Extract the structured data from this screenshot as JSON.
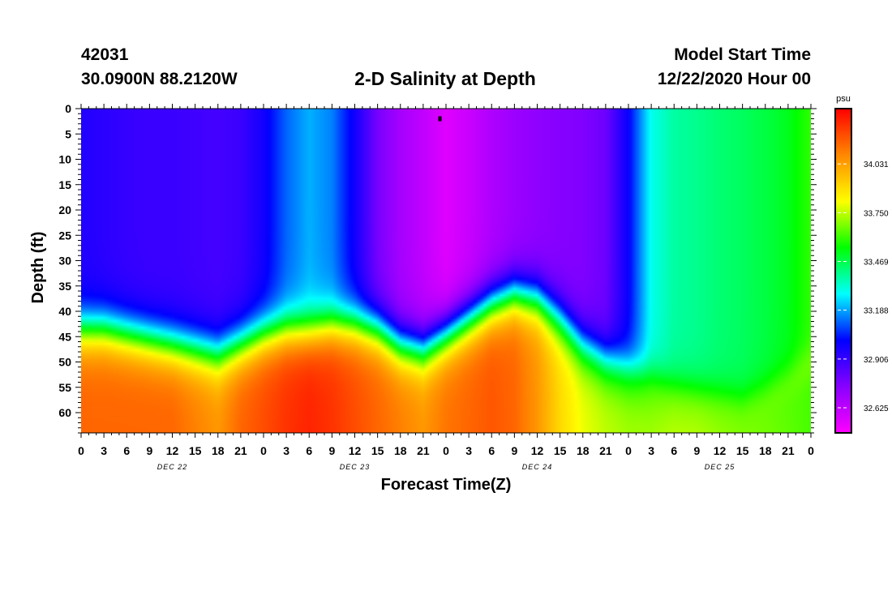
{
  "header": {
    "station_id": "42031",
    "location": "30.0900N 88.2120W",
    "title": "2-D Salinity at Depth",
    "model_label": "Model Start Time",
    "model_time": "12/22/2020 Hour 00"
  },
  "chart_data": {
    "type": "heatmap",
    "title": "2-D Salinity at Depth",
    "xlabel": "Forecast Time(Z)",
    "ylabel": "Depth (ft)",
    "x_hours_range": [
      0,
      96
    ],
    "x_tick_labels": [
      "0",
      "3",
      "6",
      "9",
      "12",
      "15",
      "18",
      "21",
      "0",
      "3",
      "6",
      "9",
      "12",
      "15",
      "18",
      "21",
      "0",
      "3",
      "6",
      "9",
      "12",
      "15",
      "18",
      "21",
      "0",
      "3",
      "6",
      "9",
      "12",
      "15",
      "18",
      "21",
      "0"
    ],
    "date_labels": [
      {
        "label": "DEC 22",
        "hour": 12
      },
      {
        "label": "DEC 23",
        "hour": 36
      },
      {
        "label": "DEC 24",
        "hour": 60
      },
      {
        "label": "DEC 25",
        "hour": 84
      }
    ],
    "y_range": [
      0,
      64
    ],
    "y_ticks": [
      0,
      5,
      10,
      15,
      20,
      25,
      30,
      35,
      40,
      45,
      50,
      55,
      60
    ],
    "colorbar": {
      "unit": "psu",
      "range": [
        32.48,
        34.35
      ],
      "ticks": [
        "34.031",
        "33.750",
        "33.469",
        "33.188",
        "32.906",
        "32.625"
      ],
      "colors": [
        "#ff00ff",
        "#8800ff",
        "#0000ff",
        "#00ffff",
        "#00ff00",
        "#ffff00",
        "#ff8800",
        "#ff0000"
      ]
    },
    "layers": {
      "hours": [
        0,
        3,
        6,
        9,
        12,
        15,
        18,
        21,
        24,
        27,
        30,
        33,
        36,
        39,
        42,
        45,
        48,
        51,
        54,
        57,
        60,
        63,
        66,
        69,
        72,
        75,
        78,
        81,
        84,
        87,
        90,
        93,
        96
      ],
      "surface_salinity": [
        32.95,
        32.93,
        32.91,
        32.9,
        32.9,
        32.89,
        32.88,
        32.9,
        32.98,
        33.12,
        33.2,
        33.15,
        32.98,
        32.78,
        32.68,
        32.62,
        32.55,
        32.6,
        32.66,
        32.7,
        32.73,
        32.75,
        32.76,
        32.8,
        33.0,
        33.3,
        33.38,
        33.4,
        33.43,
        33.45,
        33.48,
        33.52,
        33.6
      ],
      "interface_depth_ft": [
        44,
        44,
        45,
        46,
        47,
        48,
        49,
        47,
        45,
        44,
        44,
        43,
        43,
        44,
        47,
        48,
        45,
        42,
        39,
        37,
        38,
        42,
        47,
        50,
        52,
        54,
        56,
        57,
        58,
        59,
        57,
        54,
        50
      ],
      "deep_salinity": [
        34.15,
        34.15,
        34.15,
        34.15,
        34.15,
        34.1,
        34.05,
        34.15,
        34.2,
        34.25,
        34.28,
        34.25,
        34.2,
        34.15,
        34.1,
        34.05,
        34.12,
        34.15,
        34.18,
        34.15,
        34.05,
        33.9,
        33.8,
        33.75,
        33.72,
        33.72,
        33.75,
        33.75,
        33.72,
        33.7,
        33.68,
        33.65,
        33.62
      ]
    },
    "marker": {
      "hour": 47.2,
      "depth_ft": 2
    }
  }
}
